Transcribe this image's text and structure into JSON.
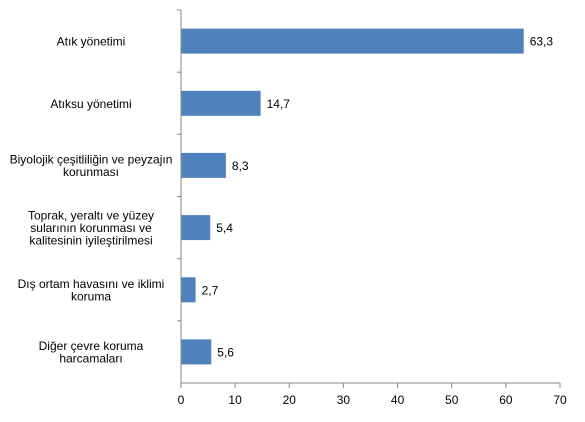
{
  "chart_data": {
    "type": "bar",
    "orientation": "horizontal",
    "categories": [
      [
        "Atık yönetimi"
      ],
      [
        "Atıksu yönetimi"
      ],
      [
        "Biyolojik çeşitliliğin ve peyzajın",
        "korunması"
      ],
      [
        "Toprak, yeraltı ve yüzey",
        "sularının korunması ve",
        "kalitesinin iyileştirilmesi"
      ],
      [
        "Dış ortam havasını ve iklimi",
        "koruma"
      ],
      [
        "Diğer çevre koruma",
        "harcamaları"
      ]
    ],
    "values": [
      63.3,
      14.7,
      8.3,
      5.4,
      2.7,
      5.6
    ],
    "value_labels": [
      "63,3",
      "14,7",
      "8,3",
      "5,4",
      "2,7",
      "5,6"
    ],
    "xlim": [
      0,
      70
    ],
    "xticks": [
      0,
      10,
      20,
      30,
      40,
      50,
      60,
      70
    ],
    "title": "",
    "xlabel": "",
    "ylabel": "",
    "grid": false,
    "legend": false,
    "bar_color": "#4F81BD",
    "axis_color": "#868686"
  }
}
